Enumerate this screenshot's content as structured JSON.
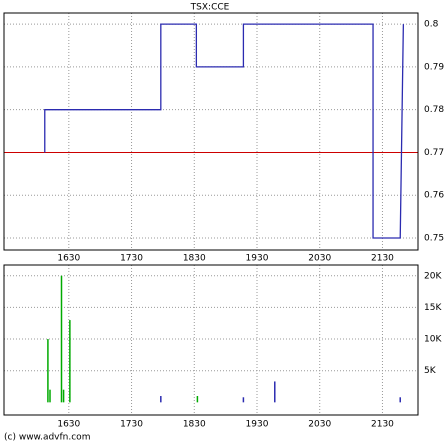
{
  "chart_data": [
    {
      "type": "line",
      "title": "TSX:CCE",
      "x": [
        967,
        967,
        1078,
        1078,
        1112,
        1112,
        1157,
        1157,
        1281,
        1281,
        1307,
        1310
      ],
      "values": [
        0.77,
        0.78,
        0.78,
        0.8,
        0.8,
        0.79,
        0.79,
        0.8,
        0.8,
        0.75,
        0.75,
        0.8
      ],
      "color": "#2b2bb0",
      "reference_line": 0.77,
      "reference_color": "#cc0000",
      "xlim": [
        928,
        1324
      ],
      "ylim": [
        0.7472,
        0.8026
      ],
      "xticks": [
        {
          "value": 990,
          "label": "1630"
        },
        {
          "value": 1050,
          "label": "1730"
        },
        {
          "value": 1110,
          "label": "1830"
        },
        {
          "value": 1170,
          "label": "1930"
        },
        {
          "value": 1230,
          "label": "2030"
        },
        {
          "value": 1290,
          "label": "2130"
        }
      ],
      "yticks": [
        0.75,
        0.76,
        0.77,
        0.78,
        0.79,
        0.8
      ],
      "grid": true
    },
    {
      "type": "bar",
      "x": [
        970,
        972,
        983,
        985,
        991,
        1078,
        1113,
        1157,
        1187,
        1307
      ],
      "values": [
        10000,
        2000,
        20000,
        2000,
        13000,
        1000,
        1000,
        800,
        3300,
        800
      ],
      "colors": [
        "#00aa00",
        "#00aa00",
        "#00aa00",
        "#00aa00",
        "#00aa00",
        "#2b2bb0",
        "#00aa00",
        "#2b2bb0",
        "#2b2bb0",
        "#2b2bb0"
      ],
      "xlim": [
        928,
        1324
      ],
      "ylim": [
        -2000,
        21700
      ],
      "xticks": [
        {
          "value": 990,
          "label": "1630"
        },
        {
          "value": 1050,
          "label": "1730"
        },
        {
          "value": 1110,
          "label": "1830"
        },
        {
          "value": 1170,
          "label": "1930"
        },
        {
          "value": 1230,
          "label": "2030"
        },
        {
          "value": 1290,
          "label": "2130"
        }
      ],
      "yticks": [
        {
          "value": 5000,
          "label": "5K"
        },
        {
          "value": 10000,
          "label": "10K"
        },
        {
          "value": 15000,
          "label": "15K"
        },
        {
          "value": 20000,
          "label": "20K"
        }
      ],
      "grid": true
    }
  ],
  "footer": "(c) www.advfn.com"
}
